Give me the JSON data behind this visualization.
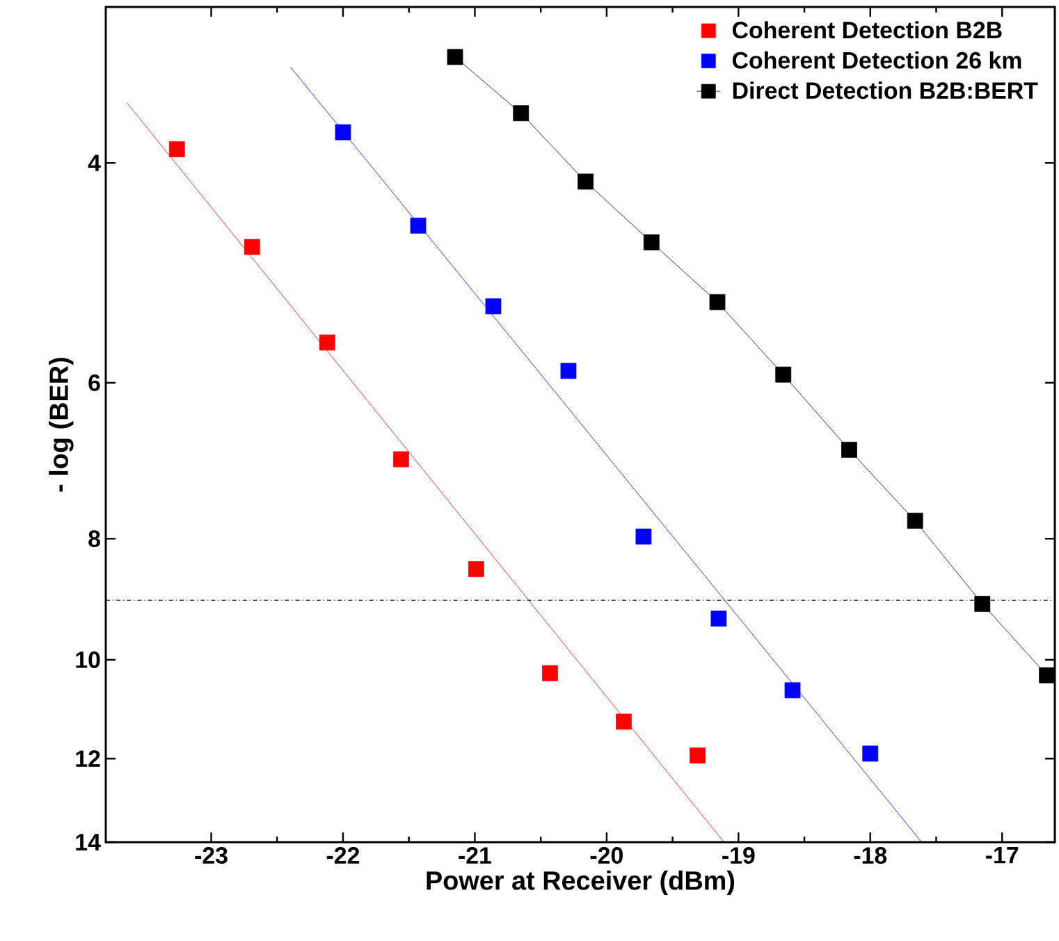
{
  "chart_data": {
    "type": "scatter",
    "xlabel": "Power at Receiver (dBm)",
    "ylabel": "- log (BER)",
    "xlim": [
      -23.8,
      -16.6
    ],
    "ylim": [
      14,
      3
    ],
    "log": "y",
    "xticks": [
      -23,
      -22,
      -21,
      -20,
      -19,
      -18,
      -17
    ],
    "yticks": [
      4,
      6,
      8,
      10,
      12,
      14
    ],
    "marker": "square",
    "legend": "top right",
    "grid": false,
    "series": [
      {
        "name": "Coherent Detection B2B",
        "color": "#ff0000",
        "x": [
          -23.26,
          -22.69,
          -22.12,
          -21.56,
          -20.99,
          -20.43,
          -19.87,
          -19.31
        ],
        "values": [
          3.9,
          4.67,
          5.57,
          6.91,
          8.46,
          10.25,
          11.21,
          11.93
        ]
      },
      {
        "name": "Coherent Detection 26 km",
        "color": "#0000ff",
        "x": [
          -22.0,
          -21.43,
          -20.86,
          -20.29,
          -19.72,
          -19.15,
          -18.59,
          -18.0
        ],
        "values": [
          3.78,
          4.49,
          5.21,
          5.87,
          7.97,
          9.27,
          10.58,
          11.89
        ]
      },
      {
        "name": "Direct Detection B2B:BERT",
        "type": "line",
        "color": "#000000",
        "x": [
          -21.15,
          -20.65,
          -20.16,
          -19.66,
          -19.16,
          -18.66,
          -18.16,
          -17.66,
          -17.15,
          -16.66
        ],
        "values": [
          3.29,
          3.65,
          4.14,
          4.63,
          5.17,
          5.91,
          6.79,
          7.74,
          9.02,
          10.29
        ]
      },
      {
        "type": "line",
        "marker": "none",
        "color": "#ff0000",
        "x": [
          -23.64,
          -19.11
        ],
        "values": [
          3.58,
          14
        ]
      },
      {
        "type": "line",
        "marker": "none",
        "color": "#0000ff",
        "x": [
          -22.4,
          -17.61
        ],
        "values": [
          3.35,
          14
        ]
      }
    ],
    "ref_lines": [
      {
        "axis": "y",
        "value": 8.96,
        "line_style": "dashdot",
        "color": "#000000"
      }
    ]
  }
}
